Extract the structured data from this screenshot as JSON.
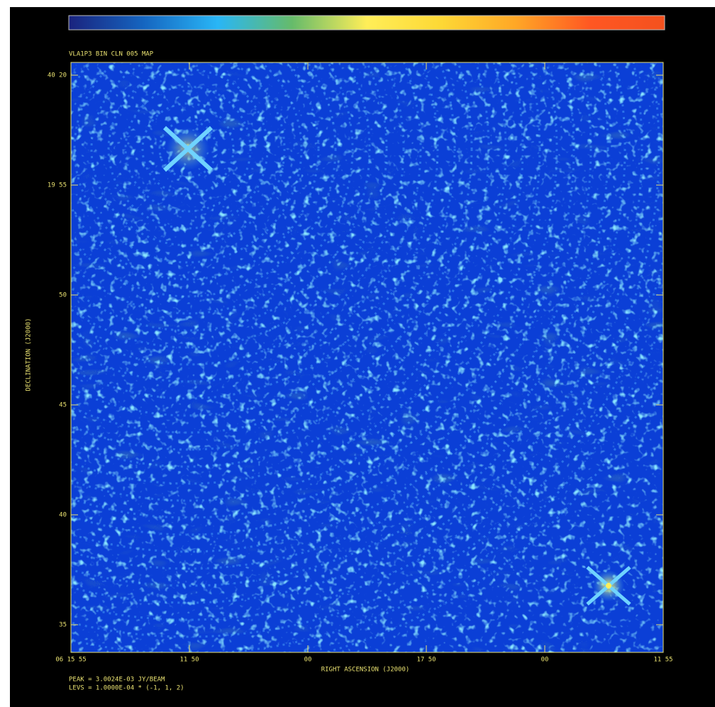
{
  "header": {
    "title": "VLA1P3 BIN  CLN 005 MAP"
  },
  "colorbar": {
    "stops": [
      "#1a237e",
      "#1565c0",
      "#29b6f6",
      "#66bb6a",
      "#ffee58",
      "#fdd835",
      "#ffa726",
      "#ff5722",
      "#f4511e"
    ]
  },
  "axes": {
    "y_label": "DECLINATION (J2000)",
    "x_label": "RIGHT ASCENSION (J2000)",
    "y_ticks": [
      "40 20",
      "19 55",
      "50",
      "45",
      "40",
      "35"
    ],
    "x_ticks": [
      "06 15 55",
      "11 50",
      "00",
      "17 50",
      "00",
      "11 55"
    ]
  },
  "footer": {
    "lines": [
      "PEAK = 3.0024E-03 JY/BEAM",
      "LEVS = 1.0000E-04 * (-1, 1, 2)"
    ]
  }
}
